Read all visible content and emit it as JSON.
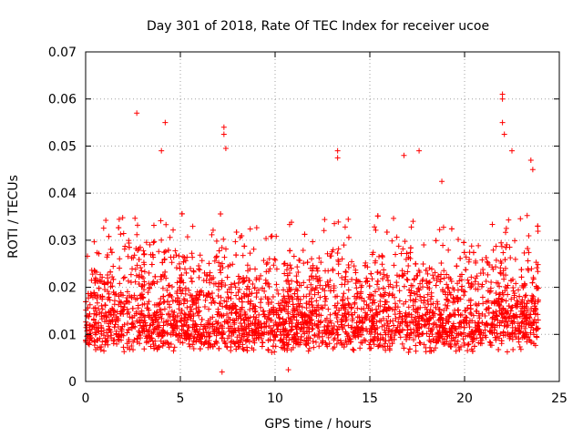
{
  "chart_data": {
    "type": "scatter",
    "title": "Day 301 of 2018, Rate Of TEC Index for receiver ucoe",
    "xlabel": "GPS time / hours",
    "ylabel": "ROTI / TECUs",
    "xlim": [
      0,
      25
    ],
    "ylim": [
      0,
      0.07
    ],
    "x_ticks": [
      "0",
      "5",
      "10",
      "15",
      "20",
      "25"
    ],
    "y_ticks": [
      "0",
      "0.01",
      "0.02",
      "0.03",
      "0.04",
      "0.05",
      "0.06",
      "0.07"
    ],
    "grid": true,
    "marker": "plus",
    "color": "#ff0000",
    "x_range_observed": [
      0,
      23.9
    ],
    "bulk_band": [
      0.005,
      0.03
    ],
    "notable_points": [
      {
        "x": 2.7,
        "y": 0.057
      },
      {
        "x": 4.2,
        "y": 0.055
      },
      {
        "x": 4.0,
        "y": 0.049
      },
      {
        "x": 7.3,
        "y": 0.054
      },
      {
        "x": 7.3,
        "y": 0.0525
      },
      {
        "x": 7.4,
        "y": 0.0495
      },
      {
        "x": 7.2,
        "y": 0.002
      },
      {
        "x": 10.7,
        "y": 0.0025
      },
      {
        "x": 13.3,
        "y": 0.049
      },
      {
        "x": 13.3,
        "y": 0.0475
      },
      {
        "x": 16.8,
        "y": 0.048
      },
      {
        "x": 17.6,
        "y": 0.049
      },
      {
        "x": 18.8,
        "y": 0.0425
      },
      {
        "x": 22.0,
        "y": 0.061
      },
      {
        "x": 22.0,
        "y": 0.06
      },
      {
        "x": 22.0,
        "y": 0.055
      },
      {
        "x": 22.1,
        "y": 0.0525
      },
      {
        "x": 22.5,
        "y": 0.049
      },
      {
        "x": 23.5,
        "y": 0.047
      },
      {
        "x": 23.6,
        "y": 0.045
      }
    ]
  }
}
